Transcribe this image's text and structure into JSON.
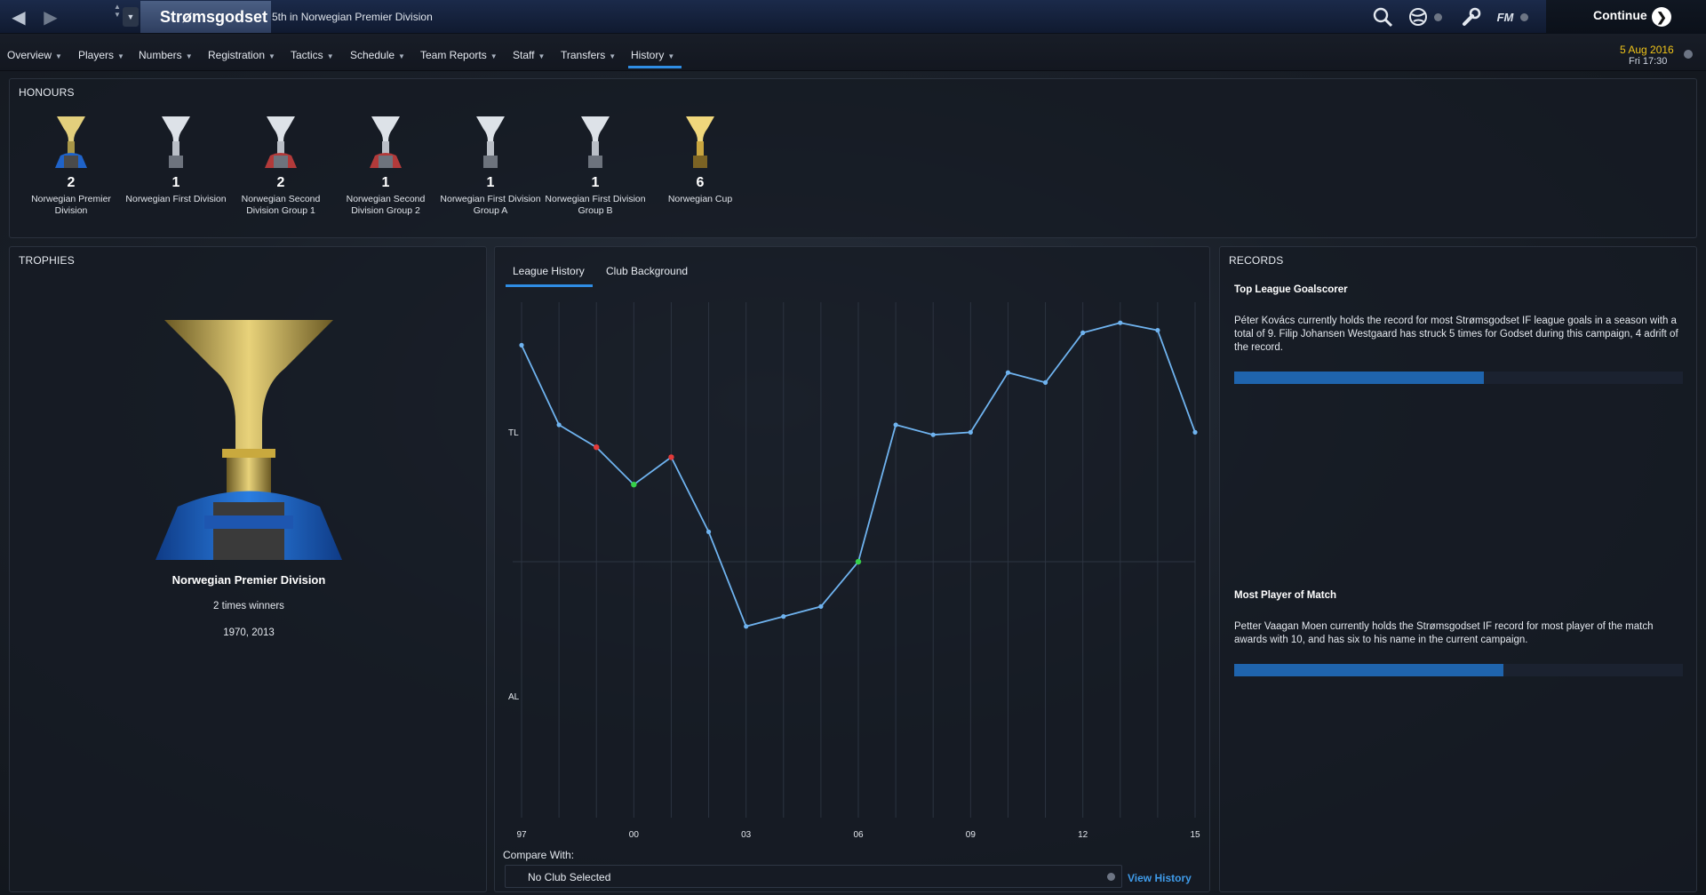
{
  "topbar": {
    "club_name": "Strømsgodset",
    "club_subtitle": "5th in Norwegian Premier Division",
    "continue_label": "Continue",
    "fm_label": "FM"
  },
  "menu": {
    "items": [
      "Overview",
      "Players",
      "Numbers",
      "Registration",
      "Tactics",
      "Schedule",
      "Team Reports",
      "Staff",
      "Transfers",
      "History"
    ],
    "active": "History"
  },
  "date": {
    "main": "5 Aug 2016",
    "sub": "Fri 17:30"
  },
  "honours": {
    "title": "HONOURS",
    "items": [
      {
        "count": "2",
        "name": "Norwegian Premier Division",
        "cup": "gold-blue"
      },
      {
        "count": "1",
        "name": "Norwegian First Division",
        "cup": "silver"
      },
      {
        "count": "2",
        "name": "Norwegian Second Division Group 1",
        "cup": "silver-red"
      },
      {
        "count": "1",
        "name": "Norwegian Second Division Group 2",
        "cup": "silver-red"
      },
      {
        "count": "1",
        "name": "Norwegian First Division Group A",
        "cup": "silver"
      },
      {
        "count": "1",
        "name": "Norwegian First Division Group B",
        "cup": "silver"
      },
      {
        "count": "6",
        "name": "Norwegian Cup",
        "cup": "gold"
      }
    ]
  },
  "trophies": {
    "title": "TROPHIES",
    "name": "Norwegian Premier Division",
    "wins": "2 times winners",
    "years": "1970, 2013"
  },
  "history_tabs": {
    "league_history": "League History",
    "club_background": "Club Background"
  },
  "chart_data": {
    "type": "line",
    "x_tick_labels": [
      "97",
      "00",
      "03",
      "06",
      "09",
      "12",
      "15"
    ],
    "y_band_labels": [
      "TL",
      "AL"
    ],
    "series": [
      {
        "x": [
          1997,
          1998,
          1999,
          2000,
          2001,
          2002,
          2003,
          2004,
          2005,
          2006,
          2007,
          2008,
          2009,
          2010,
          2011,
          2012,
          2013,
          2014,
          2015
        ],
        "y": [
          0.87,
          0.55,
          0.46,
          0.31,
          0.42,
          0.12,
          -0.26,
          -0.22,
          -0.18,
          0.0,
          0.55,
          0.51,
          0.52,
          0.76,
          0.72,
          0.92,
          0.96,
          0.93,
          0.52
        ],
        "markers": [
          "",
          "",
          "red",
          "green",
          "red",
          "",
          "",
          "",
          "",
          "green",
          "",
          "",
          "",
          "",
          "",
          "",
          "",
          "",
          ""
        ]
      }
    ],
    "color": "#6fb3ef"
  },
  "compare": {
    "label": "Compare With:",
    "value": "No Club Selected",
    "view_history": "View History"
  },
  "records": {
    "title": "RECORDS",
    "items": [
      {
        "heading": "Top League Goalscorer",
        "text": "Péter Kovács currently holds the record for most Strømsgodset IF league goals in a season with a total of 9. Filip Johansen Westgaard has struck 5 times for Godset during this campaign, 4 adrift of the record.",
        "progress": 0.556
      },
      {
        "heading": "Most Player of Match",
        "text": "Petter Vaagan Moen currently holds the Strømsgodset IF record for most player of the match awards with 10, and has six to his name in the current campaign.",
        "progress": 0.6
      }
    ]
  }
}
